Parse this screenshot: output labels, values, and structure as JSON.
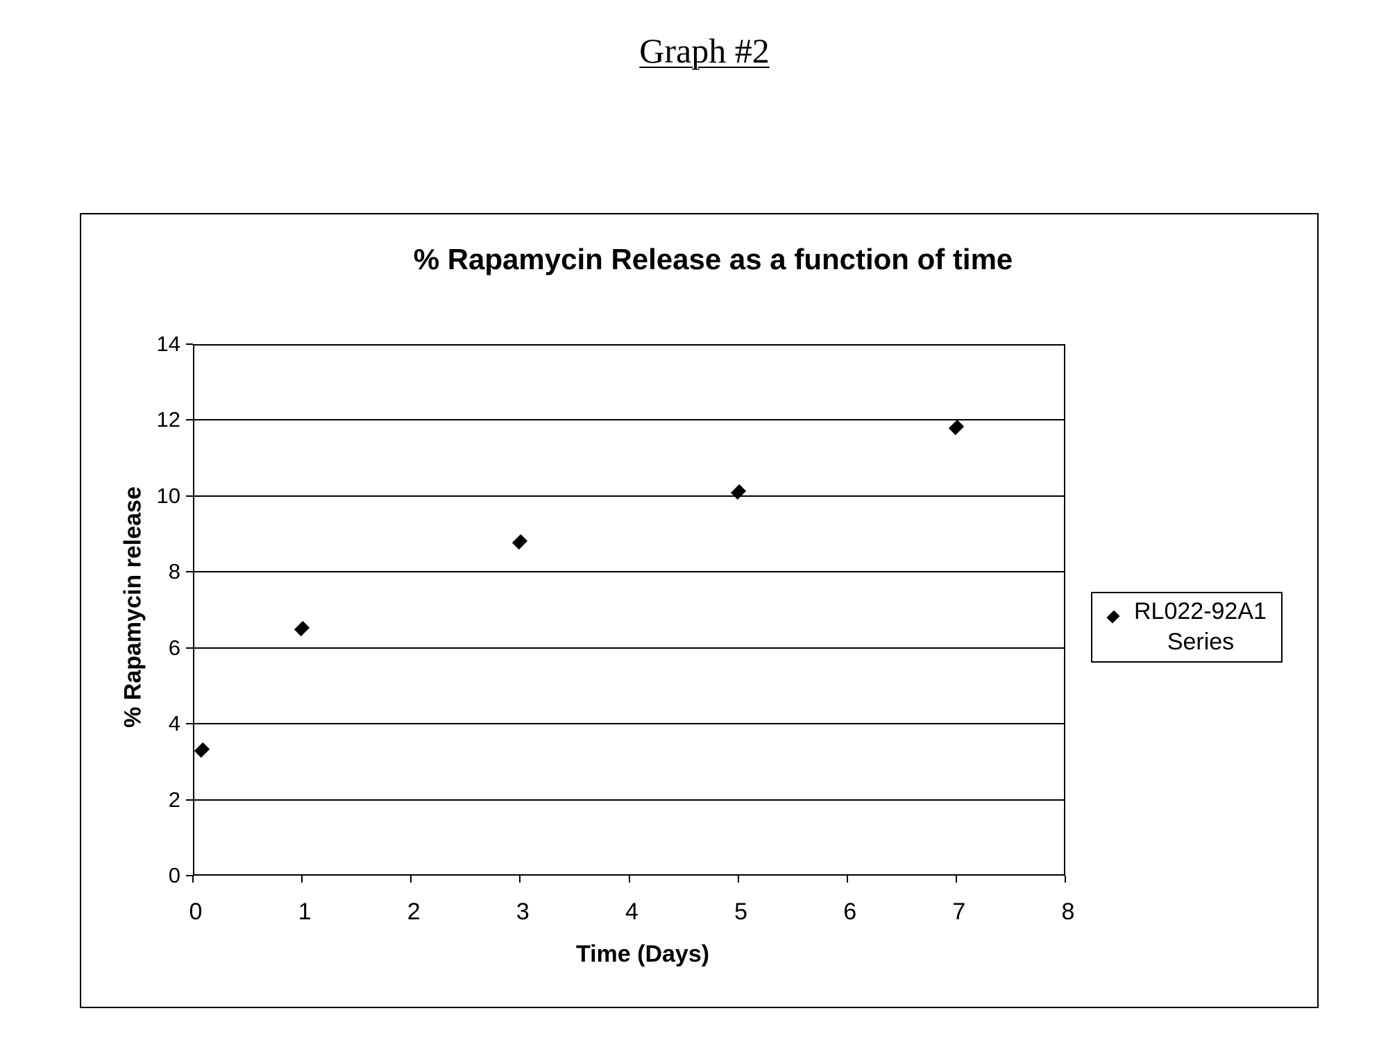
{
  "page": {
    "title": "Graph #2"
  },
  "chart": {
    "title": "% Rapamycin Release as a function of time",
    "xlabel": "Time (Days)",
    "ylabel": "% Rapamycin release",
    "y_ticks": [
      "0",
      "2",
      "4",
      "6",
      "8",
      "10",
      "12",
      "14"
    ],
    "x_ticks": [
      "0",
      "1",
      "2",
      "3",
      "4",
      "5",
      "6",
      "7",
      "8"
    ],
    "legend": {
      "line1": "RL022-92A1",
      "line2": "Series",
      "marker": "diamond-icon"
    }
  },
  "chart_data": {
    "type": "scatter",
    "title": "% Rapamycin Release as a function of time",
    "xlabel": "Time (Days)",
    "ylabel": "% Rapamycin release",
    "xlim": [
      0,
      8
    ],
    "ylim": [
      0,
      14
    ],
    "x_ticks": [
      0,
      1,
      2,
      3,
      4,
      5,
      6,
      7,
      8
    ],
    "y_ticks": [
      0,
      2,
      4,
      6,
      8,
      10,
      12,
      14
    ],
    "grid": "horizontal major gridlines",
    "legend_position": "right",
    "series": [
      {
        "name": "RL022-92A1 Series",
        "marker": "diamond",
        "color": "#000000",
        "x": [
          0.08,
          1,
          3,
          5,
          7
        ],
        "y": [
          3.3,
          6.5,
          8.8,
          10.1,
          11.8
        ]
      }
    ]
  },
  "colors": {
    "ink": "#000000",
    "background": "#ffffff"
  }
}
